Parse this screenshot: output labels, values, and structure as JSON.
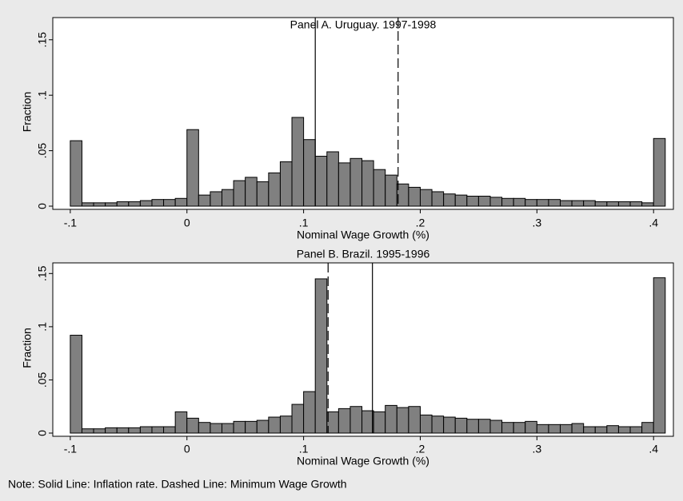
{
  "chart_data": [
    {
      "type": "histogram",
      "title": "Panel A. Uruguay. 1997-1998",
      "xlabel": "Nominal Wage Growth (%)",
      "ylabel": "Fraction",
      "bins": [
        -0.1,
        -0.09,
        -0.08,
        -0.07,
        -0.06,
        -0.05,
        -0.04,
        -0.03,
        -0.02,
        -0.01,
        0,
        0.01,
        0.02,
        0.03,
        0.04,
        0.05,
        0.06,
        0.07,
        0.08,
        0.09,
        0.1,
        0.11,
        0.12,
        0.13,
        0.14,
        0.15,
        0.16,
        0.17,
        0.18,
        0.19,
        0.2,
        0.21,
        0.22,
        0.23,
        0.24,
        0.25,
        0.26,
        0.27,
        0.28,
        0.29,
        0.3,
        0.31,
        0.32,
        0.33,
        0.34,
        0.35,
        0.36,
        0.37,
        0.38,
        0.39,
        0.4,
        0.41
      ],
      "values": [
        0.059,
        0.003,
        0.003,
        0.003,
        0.004,
        0.004,
        0.005,
        0.006,
        0.006,
        0.007,
        0.069,
        0.01,
        0.013,
        0.015,
        0.023,
        0.026,
        0.022,
        0.03,
        0.04,
        0.08,
        0.06,
        0.045,
        0.049,
        0.039,
        0.043,
        0.041,
        0.033,
        0.028,
        0.02,
        0.017,
        0.015,
        0.013,
        0.011,
        0.01,
        0.009,
        0.009,
        0.008,
        0.007,
        0.007,
        0.006,
        0.006,
        0.006,
        0.005,
        0.005,
        0.005,
        0.004,
        0.004,
        0.004,
        0.004,
        0.003,
        0.061
      ],
      "color": "#808080",
      "xlim": [
        -0.115,
        0.417
      ],
      "ylim": [
        0,
        0.17
      ],
      "xticks": [
        {
          "value": -0.1,
          "label": "-.1"
        },
        0,
        {
          "value": 0.1,
          "label": ".1"
        },
        {
          "value": 0.2,
          "label": ".2"
        },
        {
          "value": 0.3,
          "label": ".3"
        },
        {
          "value": 0.4,
          "label": ".4"
        }
      ],
      "yticks": [
        0,
        {
          "value": 0.05,
          "label": ".05"
        },
        {
          "value": 0.1,
          "label": ".1"
        },
        {
          "value": 0.15,
          "label": ".15"
        }
      ],
      "vlines": [
        {
          "x": 0.11,
          "style": "solid"
        },
        {
          "x": 0.181,
          "style": "dashed"
        }
      ]
    },
    {
      "type": "histogram",
      "title": "Panel B. Brazil. 1995-1996",
      "xlabel": "Nominal Wage Growth (%)",
      "ylabel": "Fraction",
      "bins": [
        -0.1,
        -0.09,
        -0.08,
        -0.07,
        -0.06,
        -0.05,
        -0.04,
        -0.03,
        -0.02,
        -0.01,
        0,
        0.01,
        0.02,
        0.03,
        0.04,
        0.05,
        0.06,
        0.07,
        0.08,
        0.09,
        0.1,
        0.11,
        0.12,
        0.13,
        0.14,
        0.15,
        0.16,
        0.17,
        0.18,
        0.19,
        0.2,
        0.21,
        0.22,
        0.23,
        0.24,
        0.25,
        0.26,
        0.27,
        0.28,
        0.29,
        0.3,
        0.31,
        0.32,
        0.33,
        0.34,
        0.35,
        0.36,
        0.37,
        0.38,
        0.39,
        0.4,
        0.41
      ],
      "values": [
        0.092,
        0.004,
        0.004,
        0.005,
        0.005,
        0.005,
        0.006,
        0.006,
        0.006,
        0.02,
        0.014,
        0.01,
        0.009,
        0.009,
        0.011,
        0.011,
        0.012,
        0.015,
        0.016,
        0.027,
        0.039,
        0.145,
        0.02,
        0.023,
        0.025,
        0.021,
        0.02,
        0.026,
        0.024,
        0.025,
        0.017,
        0.016,
        0.015,
        0.014,
        0.013,
        0.013,
        0.012,
        0.01,
        0.01,
        0.011,
        0.008,
        0.008,
        0.008,
        0.009,
        0.006,
        0.006,
        0.007,
        0.006,
        0.006,
        0.01,
        0.146
      ],
      "color": "#808080",
      "xlim": [
        -0.115,
        0.417
      ],
      "ylim": [
        0,
        0.16
      ],
      "xticks": [
        {
          "value": -0.1,
          "label": "-.1"
        },
        0,
        {
          "value": 0.1,
          "label": ".1"
        },
        {
          "value": 0.2,
          "label": ".2"
        },
        {
          "value": 0.3,
          "label": ".3"
        },
        {
          "value": 0.4,
          "label": ".4"
        }
      ],
      "yticks": [
        0,
        {
          "value": 0.05,
          "label": ".05"
        },
        {
          "value": 0.1,
          "label": ".1"
        },
        {
          "value": 0.15,
          "label": ".15"
        }
      ],
      "vlines": [
        {
          "x": 0.121,
          "style": "dashed"
        },
        {
          "x": 0.159,
          "style": "solid"
        }
      ]
    }
  ],
  "note": "Note: Solid Line: Inflation rate. Dashed Line: Minimum Wage Growth"
}
